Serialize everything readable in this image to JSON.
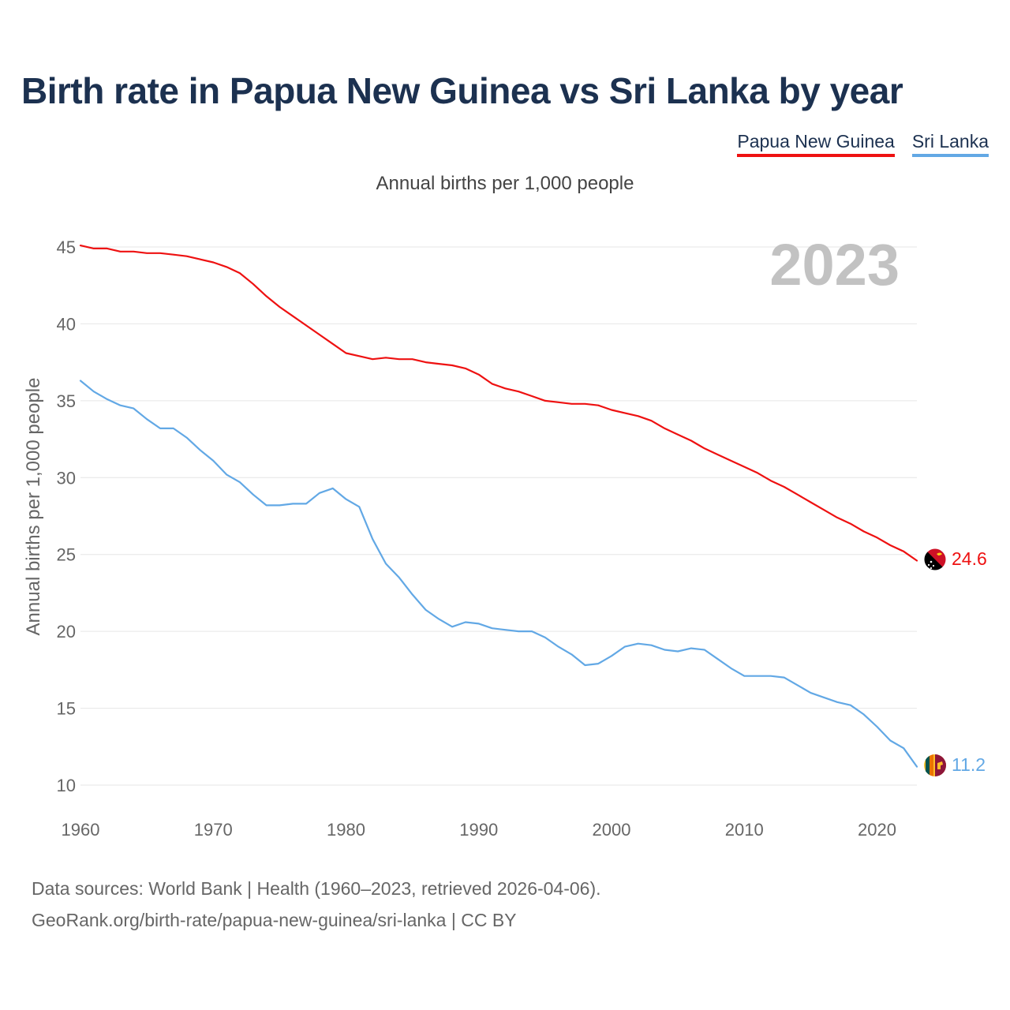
{
  "title": "Birth rate in Papua New Guinea vs Sri Lanka by year",
  "legend": [
    {
      "name": "Papua New Guinea",
      "color": "#ee1111"
    },
    {
      "name": "Sri Lanka",
      "color": "#62a8e5"
    }
  ],
  "source_line1": "Data sources: World Bank | Health (1960–2023, retrieved 2026-04-06).",
  "source_line2": "GeoRank.org/birth-rate/papua-new-guinea/sri-lanka | CC BY",
  "chart_data": {
    "type": "line",
    "title": "Birth rate in Papua New Guinea vs Sri Lanka by year",
    "subtitle": "Annual births per 1,000 people",
    "xlabel": "",
    "ylabel": "Annual births per 1,000 people",
    "year_label": "2023",
    "xlim": [
      1960,
      2023
    ],
    "ylim": [
      10,
      46
    ],
    "xticks": [
      1960,
      1970,
      1980,
      1990,
      2000,
      2010,
      2020
    ],
    "yticks": [
      10,
      15,
      20,
      25,
      30,
      35,
      40,
      45
    ],
    "grid": true,
    "x": [
      1960,
      1961,
      1962,
      1963,
      1964,
      1965,
      1966,
      1967,
      1968,
      1969,
      1970,
      1971,
      1972,
      1973,
      1974,
      1975,
      1976,
      1977,
      1978,
      1979,
      1980,
      1981,
      1982,
      1983,
      1984,
      1985,
      1986,
      1987,
      1988,
      1989,
      1990,
      1991,
      1992,
      1993,
      1994,
      1995,
      1996,
      1997,
      1998,
      1999,
      2000,
      2001,
      2002,
      2003,
      2004,
      2005,
      2006,
      2007,
      2008,
      2009,
      2010,
      2011,
      2012,
      2013,
      2014,
      2015,
      2016,
      2017,
      2018,
      2019,
      2020,
      2021,
      2022,
      2023
    ],
    "series": [
      {
        "name": "Papua New Guinea",
        "color": "#ee1111",
        "end_label": "24.6",
        "values": [
          45.1,
          44.9,
          44.9,
          44.7,
          44.7,
          44.6,
          44.6,
          44.5,
          44.4,
          44.2,
          44.0,
          43.7,
          43.3,
          42.6,
          41.8,
          41.1,
          40.5,
          39.9,
          39.3,
          38.7,
          38.1,
          37.9,
          37.7,
          37.8,
          37.7,
          37.7,
          37.5,
          37.4,
          37.3,
          37.1,
          36.7,
          36.1,
          35.8,
          35.6,
          35.3,
          35.0,
          34.9,
          34.8,
          34.8,
          34.7,
          34.4,
          34.2,
          34.0,
          33.7,
          33.2,
          32.8,
          32.4,
          31.9,
          31.5,
          31.1,
          30.7,
          30.3,
          29.8,
          29.4,
          28.9,
          28.4,
          27.9,
          27.4,
          27.0,
          26.5,
          26.1,
          25.6,
          25.2,
          24.6
        ]
      },
      {
        "name": "Sri Lanka",
        "color": "#62a8e5",
        "end_label": "11.2",
        "values": [
          36.3,
          35.6,
          35.1,
          34.7,
          34.5,
          33.8,
          33.2,
          33.2,
          32.6,
          31.8,
          31.1,
          30.2,
          29.7,
          28.9,
          28.2,
          28.2,
          28.3,
          28.3,
          29.0,
          29.3,
          28.6,
          28.1,
          26.0,
          24.4,
          23.5,
          22.4,
          21.4,
          20.8,
          20.3,
          20.6,
          20.5,
          20.2,
          20.1,
          20.0,
          20.0,
          19.6,
          19.0,
          18.5,
          17.8,
          17.9,
          18.4,
          19.0,
          19.2,
          19.1,
          18.8,
          18.7,
          18.9,
          18.8,
          18.2,
          17.6,
          17.1,
          17.1,
          17.1,
          17.0,
          16.5,
          16.0,
          15.7,
          15.4,
          15.2,
          14.6,
          13.8,
          12.9,
          12.4,
          11.2
        ]
      }
    ]
  }
}
